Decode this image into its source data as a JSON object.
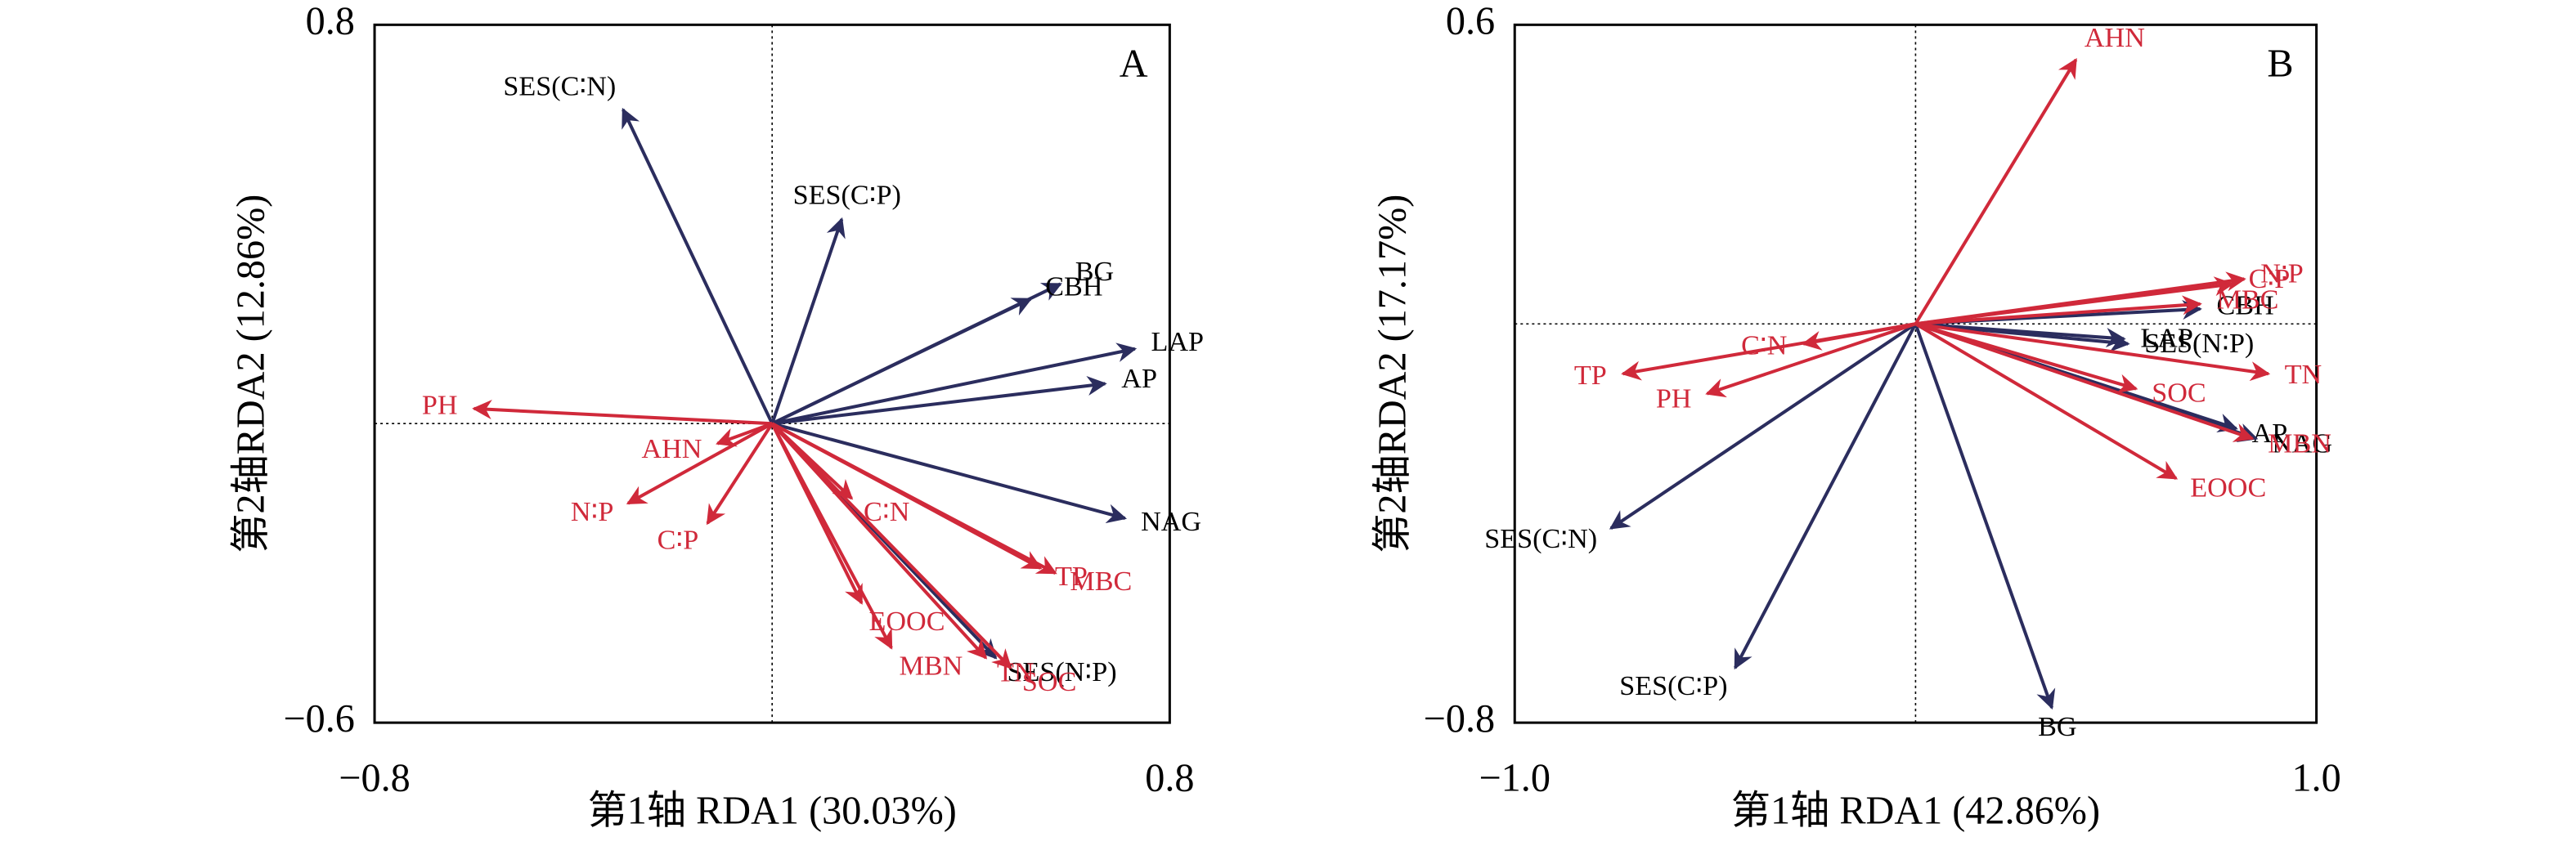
{
  "chart_data": [
    {
      "type": "biplot",
      "panel_label": "A",
      "x_label": "第1轴 RDA1 (30.03%)",
      "y_label": "第2轴RDA2 (12.86%)",
      "xlim": [
        -0.8,
        0.8
      ],
      "ylim": [
        -0.6,
        0.8
      ],
      "xticks": [
        {
          "value": -0.8,
          "label": "−0.8"
        },
        0.8
      ],
      "yticks": [
        {
          "value": -0.6,
          "label": "−0.6"
        },
        0.8
      ],
      "vectors": [
        {
          "label": "SES(C∶N)",
          "x": -0.3,
          "y": 0.63,
          "color": "#2b2d5e"
        },
        {
          "label": "SES(C∶P)",
          "x": 0.14,
          "y": 0.41,
          "color": "#2b2d5e"
        },
        {
          "label": "BG",
          "x": 0.58,
          "y": 0.28,
          "color": "#2b2d5e"
        },
        {
          "label": "CBH",
          "x": 0.52,
          "y": 0.25,
          "color": "#2b2d5e"
        },
        {
          "label": "LAP",
          "x": 0.73,
          "y": 0.15,
          "color": "#2b2d5e"
        },
        {
          "label": "AP",
          "x": 0.67,
          "y": 0.08,
          "color": "#2b2d5e"
        },
        {
          "label": "NAG",
          "x": 0.71,
          "y": -0.19,
          "color": "#2b2d5e"
        },
        {
          "label": "SES(N∶P)",
          "x": 0.45,
          "y": -0.47,
          "color": "#2b2d5e"
        },
        {
          "label": "PH",
          "x": -0.6,
          "y": 0.03,
          "color": "#d0293a"
        },
        {
          "label": "AHN",
          "x": -0.11,
          "y": -0.04,
          "color": "#d0293a"
        },
        {
          "label": "N∶P",
          "x": -0.29,
          "y": -0.16,
          "color": "#d0293a"
        },
        {
          "label": "C∶P",
          "x": -0.13,
          "y": -0.2,
          "color": "#d0293a"
        },
        {
          "label": "C∶N",
          "x": 0.16,
          "y": -0.15,
          "color": "#d0293a"
        },
        {
          "label": "MBC",
          "x": 0.57,
          "y": -0.3,
          "color": "#d0293a"
        },
        {
          "label": "TP",
          "x": 0.54,
          "y": -0.29,
          "color": "#d0293a"
        },
        {
          "label": "EOOC",
          "x": 0.18,
          "y": -0.36,
          "color": "#d0293a"
        },
        {
          "label": "MBN",
          "x": 0.24,
          "y": -0.45,
          "color": "#d0293a"
        },
        {
          "label": "TN",
          "x": 0.43,
          "y": -0.47,
          "color": "#d0293a"
        },
        {
          "label": "SOC",
          "x": 0.48,
          "y": -0.49,
          "color": "#d0293a"
        }
      ]
    },
    {
      "type": "biplot",
      "panel_label": "B",
      "x_label": "第1轴 RDA1 (42.86%)",
      "y_label": "第2轴RDA2 (17.17%)",
      "xlim": [
        -1.0,
        1.0
      ],
      "ylim": [
        -0.8,
        0.6
      ],
      "xticks": [
        {
          "value": -1.0,
          "label": "−1.0"
        },
        {
          "value": 1.0,
          "label": "1.0"
        }
      ],
      "yticks": [
        {
          "value": -0.8,
          "label": "−0.8"
        },
        0.6
      ],
      "vectors": [
        {
          "label": "CBH",
          "x": 0.71,
          "y": 0.03,
          "color": "#2b2d5e"
        },
        {
          "label": "SES(N∶P)",
          "x": 0.53,
          "y": -0.04,
          "color": "#2b2d5e"
        },
        {
          "label": "LAP",
          "x": 0.52,
          "y": -0.03,
          "color": "#2b2d5e"
        },
        {
          "label": "AP",
          "x": 0.8,
          "y": -0.21,
          "color": "#2b2d5e"
        },
        {
          "label": "NAG",
          "x": 0.85,
          "y": -0.23,
          "color": "#2b2d5e"
        },
        {
          "label": "SES(C∶N)",
          "x": -0.76,
          "y": -0.41,
          "color": "#2b2d5e"
        },
        {
          "label": "SES(C∶P)",
          "x": -0.45,
          "y": -0.69,
          "color": "#2b2d5e"
        },
        {
          "label": "BG",
          "x": 0.34,
          "y": -0.77,
          "color": "#2b2d5e"
        },
        {
          "label": "AHN",
          "x": 0.4,
          "y": 0.53,
          "color": "#d0293a"
        },
        {
          "label": "C∶P",
          "x": 0.79,
          "y": 0.08,
          "color": "#d0293a"
        },
        {
          "label": "N∶P",
          "x": 0.82,
          "y": 0.09,
          "color": "#d0293a"
        },
        {
          "label": "MBC",
          "x": 0.71,
          "y": 0.04,
          "color": "#d0293a"
        },
        {
          "label": "TN",
          "x": 0.88,
          "y": -0.1,
          "color": "#d0293a"
        },
        {
          "label": "MBN",
          "x": 0.84,
          "y": -0.23,
          "color": "#d0293a"
        },
        {
          "label": "SOC",
          "x": 0.55,
          "y": -0.13,
          "color": "#d0293a"
        },
        {
          "label": "EOOC",
          "x": 0.65,
          "y": -0.31,
          "color": "#d0293a"
        },
        {
          "label": "C∶N",
          "x": -0.28,
          "y": -0.04,
          "color": "#d0293a"
        },
        {
          "label": "TP",
          "x": -0.73,
          "y": -0.1,
          "color": "#d0293a"
        },
        {
          "label": "PH",
          "x": -0.52,
          "y": -0.14,
          "color": "#d0293a"
        }
      ]
    }
  ]
}
